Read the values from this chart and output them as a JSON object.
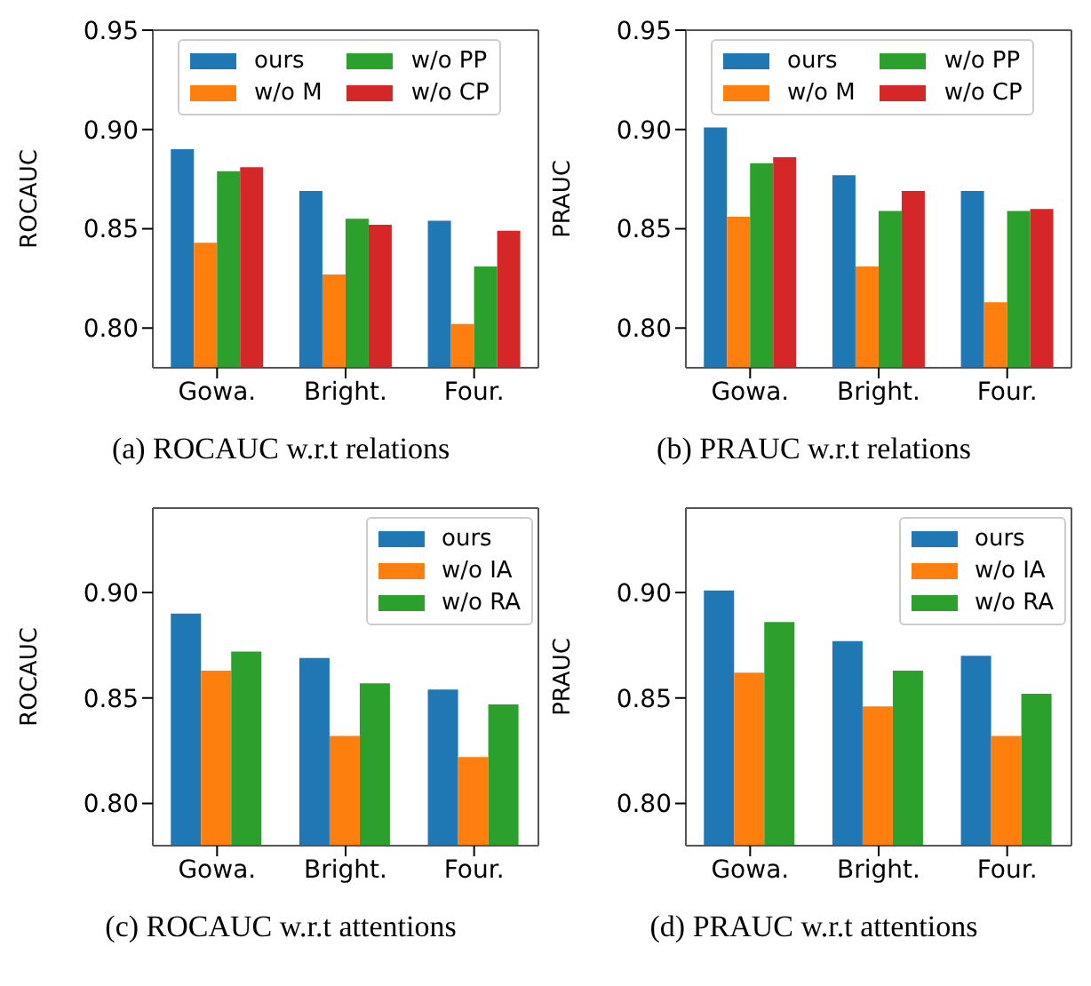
{
  "chart_data": [
    {
      "type": "bar",
      "title": "(a) ROCAUC w.r.t relations",
      "ylabel": "ROCAUC",
      "categories": [
        "Gowa.",
        "Bright.",
        "Four."
      ],
      "ylim": [
        0.78,
        0.95
      ],
      "yticks": [
        {
          "value": 0.8,
          "label": "0.80"
        },
        {
          "value": 0.85,
          "label": "0.85"
        },
        {
          "value": 0.9,
          "label": "0.90"
        },
        {
          "value": 0.95,
          "label": "0.95"
        }
      ],
      "grid": false,
      "legend": "top",
      "series": [
        {
          "name": "ours",
          "color": "#1f77b4",
          "values": [
            0.89,
            0.869,
            0.854
          ]
        },
        {
          "name": "w/o M",
          "color": "#ff7f0e",
          "values": [
            0.843,
            0.827,
            0.802
          ]
        },
        {
          "name": "w/o PP",
          "color": "#2ca02c",
          "values": [
            0.879,
            0.855,
            0.831
          ]
        },
        {
          "name": "w/o CP",
          "color": "#d62728",
          "values": [
            0.881,
            0.852,
            0.849
          ]
        }
      ]
    },
    {
      "type": "bar",
      "title": "(b) PRAUC w.r.t relations",
      "ylabel": "PRAUC",
      "categories": [
        "Gowa.",
        "Bright.",
        "Four."
      ],
      "ylim": [
        0.78,
        0.95
      ],
      "yticks": [
        {
          "value": 0.8,
          "label": "0.80"
        },
        {
          "value": 0.85,
          "label": "0.85"
        },
        {
          "value": 0.9,
          "label": "0.90"
        },
        {
          "value": 0.95,
          "label": "0.95"
        }
      ],
      "grid": false,
      "legend": "top",
      "series": [
        {
          "name": "ours",
          "color": "#1f77b4",
          "values": [
            0.901,
            0.877,
            0.869
          ]
        },
        {
          "name": "w/o M",
          "color": "#ff7f0e",
          "values": [
            0.856,
            0.831,
            0.813
          ]
        },
        {
          "name": "w/o PP",
          "color": "#2ca02c",
          "values": [
            0.883,
            0.859,
            0.859
          ]
        },
        {
          "name": "w/o CP",
          "color": "#d62728",
          "values": [
            0.886,
            0.869,
            0.86
          ]
        }
      ]
    },
    {
      "type": "bar",
      "title": "(c) ROCAUC w.r.t attentions",
      "ylabel": "ROCAUC",
      "categories": [
        "Gowa.",
        "Bright.",
        "Four."
      ],
      "ylim": [
        0.78,
        0.94
      ],
      "yticks": [
        {
          "value": 0.8,
          "label": "0.80"
        },
        {
          "value": 0.85,
          "label": "0.85"
        },
        {
          "value": 0.9,
          "label": "0.90"
        }
      ],
      "grid": false,
      "legend": "top right",
      "series": [
        {
          "name": "ours",
          "color": "#1f77b4",
          "values": [
            0.89,
            0.869,
            0.854
          ]
        },
        {
          "name": "w/o IA",
          "color": "#ff7f0e",
          "values": [
            0.863,
            0.832,
            0.822
          ]
        },
        {
          "name": "w/o RA",
          "color": "#2ca02c",
          "values": [
            0.872,
            0.857,
            0.847
          ]
        }
      ]
    },
    {
      "type": "bar",
      "title": "(d) PRAUC w.r.t attentions",
      "ylabel": "PRAUC",
      "categories": [
        "Gowa.",
        "Bright.",
        "Four."
      ],
      "ylim": [
        0.78,
        0.94
      ],
      "yticks": [
        {
          "value": 0.8,
          "label": "0.80"
        },
        {
          "value": 0.85,
          "label": "0.85"
        },
        {
          "value": 0.9,
          "label": "0.90"
        }
      ],
      "grid": false,
      "legend": "top right",
      "series": [
        {
          "name": "ours",
          "color": "#1f77b4",
          "values": [
            0.901,
            0.877,
            0.87
          ]
        },
        {
          "name": "w/o IA",
          "color": "#ff7f0e",
          "values": [
            0.862,
            0.846,
            0.832
          ]
        },
        {
          "name": "w/o RA",
          "color": "#2ca02c",
          "values": [
            0.886,
            0.863,
            0.852
          ]
        }
      ]
    }
  ]
}
